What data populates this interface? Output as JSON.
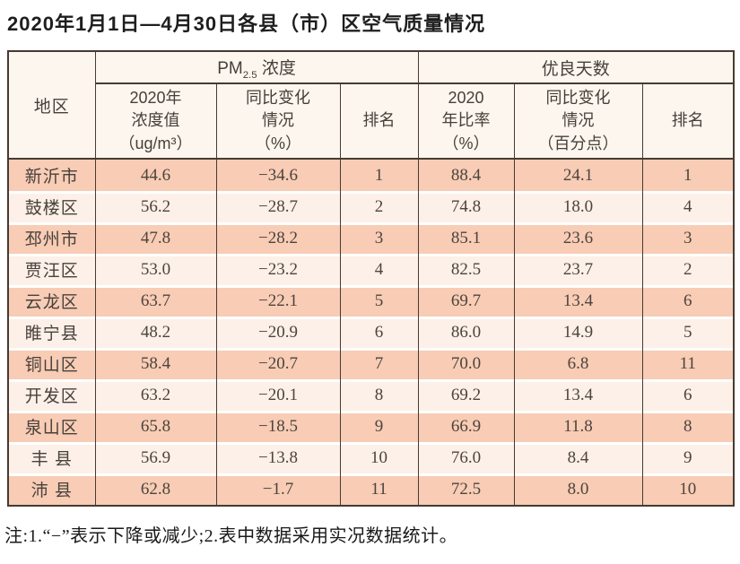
{
  "page": {
    "title": "2020年1月1日—4月30日各县（市）区空气质量情况",
    "footnote": "注:1.“−”表示下降或减少;2.表中数据采用实况数据统计。"
  },
  "colors": {
    "row_dark": "#f8ccb5",
    "row_light": "#fcf0e8",
    "header_bg": "#fdf6ee",
    "border": "#473a31"
  },
  "table": {
    "corner_header": "地区",
    "group_pm": {
      "base": "PM",
      "sub": "2.5",
      "rest": " 浓度"
    },
    "group_good": "优良天数",
    "sub_headers": {
      "pm_value": [
        "2020年",
        "浓度值",
        "（ug/m³）"
      ],
      "pm_change": [
        "同比变化",
        "情况",
        "（%）"
      ],
      "pm_rank": "排名",
      "good_rate": [
        "2020",
        "年比率",
        "（%）"
      ],
      "good_change": [
        "同比变化",
        "情况",
        "（百分点）"
      ],
      "good_rank": "排名"
    },
    "rows": [
      {
        "region": "新沂市",
        "pm_value": "44.6",
        "pm_change": "−34.6",
        "pm_rank": "1",
        "good_rate": "88.4",
        "good_change": "24.1",
        "good_rank": "1"
      },
      {
        "region": "鼓楼区",
        "pm_value": "56.2",
        "pm_change": "−28.7",
        "pm_rank": "2",
        "good_rate": "74.8",
        "good_change": "18.0",
        "good_rank": "4"
      },
      {
        "region": "邳州市",
        "pm_value": "47.8",
        "pm_change": "−28.2",
        "pm_rank": "3",
        "good_rate": "85.1",
        "good_change": "23.6",
        "good_rank": "3"
      },
      {
        "region": "贾汪区",
        "pm_value": "53.0",
        "pm_change": "−23.2",
        "pm_rank": "4",
        "good_rate": "82.5",
        "good_change": "23.7",
        "good_rank": "2"
      },
      {
        "region": "云龙区",
        "pm_value": "63.7",
        "pm_change": "−22.1",
        "pm_rank": "5",
        "good_rate": "69.7",
        "good_change": "13.4",
        "good_rank": "6"
      },
      {
        "region": "睢宁县",
        "pm_value": "48.2",
        "pm_change": "−20.9",
        "pm_rank": "6",
        "good_rate": "86.0",
        "good_change": "14.9",
        "good_rank": "5"
      },
      {
        "region": "铜山区",
        "pm_value": "58.4",
        "pm_change": "−20.7",
        "pm_rank": "7",
        "good_rate": "70.0",
        "good_change": "6.8",
        "good_rank": "11"
      },
      {
        "region": "开发区",
        "pm_value": "63.2",
        "pm_change": "−20.1",
        "pm_rank": "8",
        "good_rate": "69.2",
        "good_change": "13.4",
        "good_rank": "6"
      },
      {
        "region": "泉山区",
        "pm_value": "65.8",
        "pm_change": "−18.5",
        "pm_rank": "9",
        "good_rate": "66.9",
        "good_change": "11.8",
        "good_rank": "8"
      },
      {
        "region": "丰 县",
        "pm_value": "56.9",
        "pm_change": "−13.8",
        "pm_rank": "10",
        "good_rate": "76.0",
        "good_change": "8.4",
        "good_rank": "9"
      },
      {
        "region": "沛 县",
        "pm_value": "62.8",
        "pm_change": "−1.7",
        "pm_rank": "11",
        "good_rate": "72.5",
        "good_change": "8.0",
        "good_rank": "10"
      }
    ]
  }
}
